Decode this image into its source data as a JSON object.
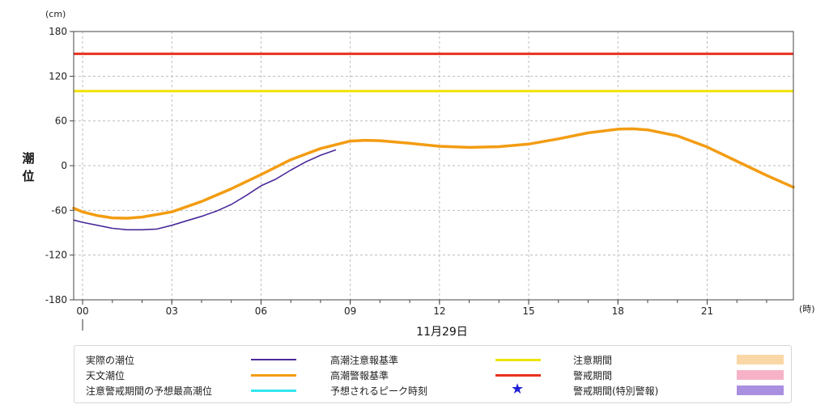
{
  "chart_data": {
    "type": "line",
    "ylabel": "潮位",
    "yunit": "(cm)",
    "xunit": "(時)",
    "date_label": "11月29日",
    "ylim": [
      -180,
      180
    ],
    "yticks": [
      180,
      120,
      60,
      0,
      -60,
      -120,
      -180
    ],
    "xlim": [
      -0.3,
      23.9
    ],
    "xticks": [
      0,
      3,
      6,
      9,
      12,
      15,
      18,
      21
    ],
    "xtick_labels": [
      "00",
      "03",
      "06",
      "09",
      "12",
      "15",
      "18",
      "21"
    ],
    "grid": true,
    "thresholds": [
      {
        "name": "高潮注意報基準",
        "value": 100,
        "color": "#f2e200"
      },
      {
        "name": "高潮警報基準",
        "value": 150,
        "color": "#e8321e"
      }
    ],
    "series": [
      {
        "name": "天文潮位",
        "color": "#f39c12",
        "x": [
          -0.3,
          0,
          0.5,
          1,
          1.5,
          2,
          3,
          4,
          5,
          6,
          7,
          8,
          9,
          9.5,
          10,
          11,
          12,
          13,
          14,
          15,
          16,
          17,
          18,
          18.5,
          19,
          20,
          21,
          22,
          23,
          23.9
        ],
        "y": [
          -57,
          -62,
          -67,
          -70,
          -70.5,
          -69,
          -62,
          -48,
          -31,
          -12,
          8,
          23,
          33,
          34,
          33.5,
          30,
          26,
          24.5,
          25.5,
          29,
          36,
          44,
          49,
          49.5,
          48,
          40,
          25,
          6,
          -13,
          -29
        ]
      },
      {
        "name": "実際の潮位",
        "color": "#4b2a9a",
        "x": [
          -0.3,
          0,
          0.5,
          1,
          1.5,
          2,
          2.5,
          3,
          3.5,
          4,
          4.5,
          5,
          5.5,
          6,
          6.5,
          7,
          7.5,
          8,
          8.5
        ],
        "y": [
          -73,
          -76,
          -80,
          -84,
          -86,
          -86,
          -85,
          -80,
          -74,
          -68,
          -61,
          -52,
          -40,
          -27,
          -18,
          -6,
          5,
          14,
          21
        ]
      }
    ],
    "legend": {
      "placement": "bottom",
      "items": [
        {
          "label": "実際の潮位",
          "kind": "line",
          "color": "#4b2a9a"
        },
        {
          "label": "高潮注意報基準",
          "kind": "line",
          "color": "#f2e200"
        },
        {
          "label": "注意期間",
          "kind": "box",
          "color": "#fad7a6"
        },
        {
          "label": "天文潮位",
          "kind": "line",
          "color": "#f39c12"
        },
        {
          "label": "高潮警報基準",
          "kind": "line",
          "color": "#e8321e"
        },
        {
          "label": "警戒期間",
          "kind": "box",
          "color": "#f6b3c7"
        },
        {
          "label": "注意警戒期間の予想最高潮位",
          "kind": "line",
          "color": "#33e5f2"
        },
        {
          "label": "予想されるピーク時刻",
          "kind": "star",
          "color": "#1f1fd6"
        },
        {
          "label": "警戒期間(特別警報)",
          "kind": "box",
          "color": "#a98fe0"
        }
      ]
    }
  }
}
